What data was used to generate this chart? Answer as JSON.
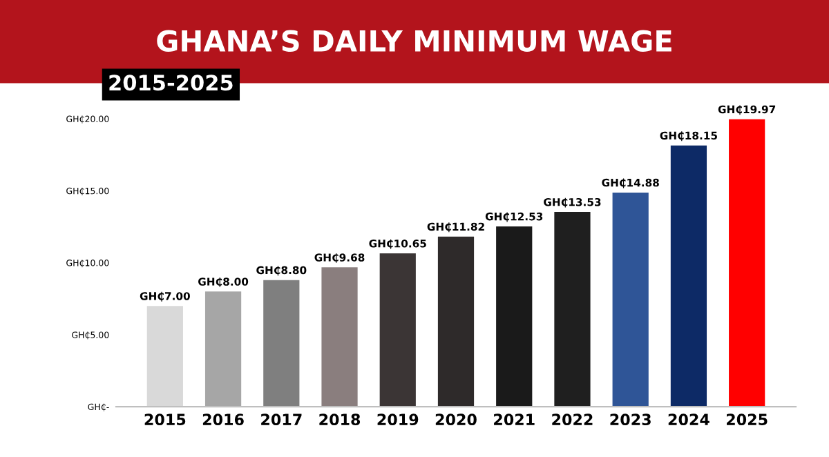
{
  "chart_data": {
    "type": "bar",
    "title": "GHANA’S DAILY MINIMUM WAGE",
    "subtitle": "2015-2025",
    "categories": [
      "2015",
      "2016",
      "2017",
      "2018",
      "2019",
      "2020",
      "2021",
      "2022",
      "2023",
      "2024",
      "2025"
    ],
    "values": [
      7.0,
      8.0,
      8.8,
      9.68,
      10.65,
      11.82,
      12.53,
      13.53,
      14.88,
      18.15,
      19.97
    ],
    "colors": [
      "#d9d9d9",
      "#a6a6a6",
      "#7f7f7f",
      "#8a7e7e",
      "#3b3535",
      "#2e2a2a",
      "#1a1a1a",
      "#1f1f1f",
      "#2f5597",
      "#0d2a66",
      "#ff0000"
    ],
    "value_labels": [
      "GH₵7.00",
      "GH₵8.00",
      "GH₵8.80",
      "GH₵9.68",
      "GH₵10.65",
      "GH₵11.82",
      "GH₵12.53",
      "GH₵13.53",
      "GH₵14.88",
      "GH₵18.15",
      "GH₵19.97"
    ],
    "ylim": [
      0,
      20
    ],
    "yticks": [
      {
        "value": 0,
        "label": "GH₵-"
      },
      {
        "value": 5,
        "label": "GH₵5.00"
      },
      {
        "value": 10,
        "label": "GH₵10.00"
      },
      {
        "value": 15,
        "label": "GH₵15.00"
      },
      {
        "value": 20,
        "label": "GH₵20.00"
      }
    ],
    "grid": false,
    "legend": false
  }
}
